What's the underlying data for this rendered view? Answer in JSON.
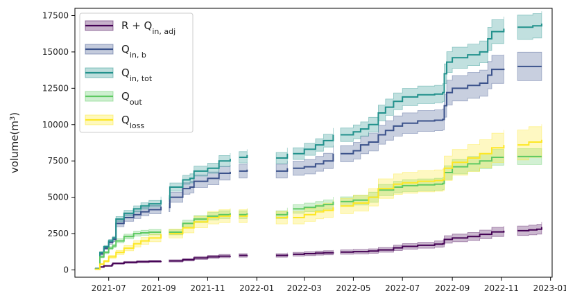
{
  "chart_data": {
    "type": "line",
    "title": "",
    "xlabel": "",
    "ylabel": "volume(m",
    "ylabel_sup": "3",
    "ylabel_close": ")",
    "xlim": [
      "2021-05-20",
      "2023-01-03"
    ],
    "ylim": [
      -500,
      18000
    ],
    "x_ticks": [
      "2021-07-01",
      "2021-09-01",
      "2021-11-01",
      "2022-01-01",
      "2022-03-01",
      "2022-05-01",
      "2022-07-01",
      "2022-09-01",
      "2022-11-01",
      "2023-01-01"
    ],
    "x_tick_labels": [
      "2021-07",
      "2021-09",
      "2021-11",
      "2022-01",
      "2022-03",
      "2022-05",
      "2022-07",
      "2022-09",
      "2022-11",
      "2023-01"
    ],
    "y_ticks": [
      0,
      2500,
      5000,
      7500,
      10000,
      12500,
      15000,
      17500
    ],
    "y_tick_labels": [
      "0",
      "2500",
      "5000",
      "7500",
      "10000",
      "12500",
      "15000",
      "17500"
    ],
    "grid": false,
    "legend_position": "top-left",
    "series": [
      {
        "name": "R + Q",
        "sub": "in, adj",
        "color": "#440154",
        "band": 0.12,
        "segments": [
          [
            [
              "2021-06-14",
              50
            ],
            [
              "2021-06-20",
              200
            ],
            [
              "2021-06-25",
              280
            ],
            [
              "2021-07-05",
              350
            ],
            [
              "2021-07-06",
              450
            ],
            [
              "2021-07-20",
              520
            ],
            [
              "2021-08-05",
              570
            ],
            [
              "2021-08-20",
              590
            ],
            [
              "2021-09-04",
              600
            ]
          ],
          [
            [
              "2021-09-14",
              620
            ],
            [
              "2021-10-01",
              700
            ],
            [
              "2021-10-15",
              820
            ],
            [
              "2021-11-01",
              900
            ],
            [
              "2021-11-15",
              950
            ],
            [
              "2021-11-29",
              970
            ]
          ],
          [
            [
              "2021-12-10",
              1000
            ],
            [
              "2021-12-20",
              1010
            ]
          ],
          [
            [
              "2022-01-25",
              1000
            ],
            [
              "2022-02-08",
              1060
            ]
          ],
          [
            [
              "2022-02-15",
              1080
            ],
            [
              "2022-03-01",
              1120
            ],
            [
              "2022-03-15",
              1160
            ],
            [
              "2022-03-25",
              1180
            ],
            [
              "2022-04-06",
              1220
            ]
          ],
          [
            [
              "2022-04-15",
              1230
            ],
            [
              "2022-05-01",
              1260
            ],
            [
              "2022-05-20",
              1300
            ],
            [
              "2022-06-01",
              1380
            ],
            [
              "2022-06-20",
              1520
            ],
            [
              "2022-07-01",
              1620
            ],
            [
              "2022-07-20",
              1700
            ],
            [
              "2022-08-10",
              1780
            ],
            [
              "2022-08-20",
              1800
            ],
            [
              "2022-08-22",
              2100
            ],
            [
              "2022-09-01",
              2200
            ],
            [
              "2022-09-20",
              2300
            ],
            [
              "2022-10-05",
              2450
            ],
            [
              "2022-10-20",
              2620
            ],
            [
              "2022-11-04",
              2700
            ]
          ],
          [
            [
              "2022-11-21",
              2700
            ],
            [
              "2022-12-05",
              2750
            ],
            [
              "2022-12-15",
              2800
            ],
            [
              "2022-12-21",
              2950
            ]
          ]
        ]
      },
      {
        "name": "Q",
        "sub": "in, b",
        "color": "#3b528b",
        "band": 0.07,
        "segments": [
          [
            [
              "2021-06-14",
              100
            ],
            [
              "2021-06-20",
              1100
            ],
            [
              "2021-06-25",
              1500
            ],
            [
              "2021-07-01",
              1900
            ],
            [
              "2021-07-06",
              2100
            ],
            [
              "2021-07-10",
              3200
            ],
            [
              "2021-07-20",
              3600
            ],
            [
              "2021-08-01",
              3800
            ],
            [
              "2021-08-10",
              4000
            ],
            [
              "2021-08-20",
              4150
            ],
            [
              "2021-09-04",
              4350
            ]
          ],
          [
            [
              "2021-09-14",
              4300
            ],
            [
              "2021-09-15",
              5000
            ],
            [
              "2021-10-01",
              5600
            ],
            [
              "2021-10-10",
              5700
            ],
            [
              "2021-10-15",
              6100
            ],
            [
              "2021-11-01",
              6300
            ],
            [
              "2021-11-15",
              6650
            ],
            [
              "2021-11-29",
              6750
            ]
          ],
          [
            [
              "2021-12-10",
              6800
            ],
            [
              "2021-12-20",
              6900
            ]
          ],
          [
            [
              "2022-01-25",
              6800
            ],
            [
              "2022-02-08",
              7000
            ]
          ],
          [
            [
              "2022-02-15",
              7000
            ],
            [
              "2022-03-01",
              7100
            ],
            [
              "2022-03-15",
              7300
            ],
            [
              "2022-03-25",
              7500
            ],
            [
              "2022-04-06",
              8000
            ]
          ],
          [
            [
              "2022-04-15",
              8000
            ],
            [
              "2022-05-01",
              8200
            ],
            [
              "2022-05-10",
              8600
            ],
            [
              "2022-05-20",
              8800
            ],
            [
              "2022-06-01",
              9300
            ],
            [
              "2022-06-10",
              9600
            ],
            [
              "2022-06-20",
              9900
            ],
            [
              "2022-07-01",
              10100
            ],
            [
              "2022-07-20",
              10250
            ],
            [
              "2022-08-10",
              10300
            ],
            [
              "2022-08-20",
              10350
            ],
            [
              "2022-08-22",
              11300
            ],
            [
              "2022-08-25",
              12200
            ],
            [
              "2022-09-01",
              12500
            ],
            [
              "2022-09-20",
              12700
            ],
            [
              "2022-10-05",
              12850
            ],
            [
              "2022-10-15",
              13400
            ],
            [
              "2022-10-20",
              13800
            ],
            [
              "2022-11-04",
              13850
            ]
          ],
          [
            [
              "2022-11-21",
              14000
            ],
            [
              "2022-12-21",
              14000
            ]
          ]
        ]
      },
      {
        "name": "Q",
        "sub": "in, tot",
        "color": "#21918c",
        "band": 0.05,
        "segments": [
          [
            [
              "2021-06-14",
              100
            ],
            [
              "2021-06-20",
              1200
            ],
            [
              "2021-06-25",
              1600
            ],
            [
              "2021-07-01",
              2000
            ],
            [
              "2021-07-06",
              2200
            ],
            [
              "2021-07-10",
              3500
            ],
            [
              "2021-07-20",
              3900
            ],
            [
              "2021-08-01",
              4200
            ],
            [
              "2021-08-10",
              4400
            ],
            [
              "2021-08-20",
              4550
            ],
            [
              "2021-09-04",
              4800
            ]
          ],
          [
            [
              "2021-09-14",
              4900
            ],
            [
              "2021-09-15",
              5700
            ],
            [
              "2021-10-01",
              6200
            ],
            [
              "2021-10-10",
              6300
            ],
            [
              "2021-10-15",
              6800
            ],
            [
              "2021-11-01",
              7000
            ],
            [
              "2021-11-15",
              7500
            ],
            [
              "2021-11-29",
              7650
            ]
          ],
          [
            [
              "2021-12-10",
              7750
            ],
            [
              "2021-12-20",
              7900
            ]
          ],
          [
            [
              "2022-01-25",
              7700
            ],
            [
              "2022-02-08",
              8000
            ]
          ],
          [
            [
              "2022-02-15",
              8000
            ],
            [
              "2022-03-01",
              8300
            ],
            [
              "2022-03-15",
              8600
            ],
            [
              "2022-03-25",
              8900
            ],
            [
              "2022-04-06",
              9300
            ]
          ],
          [
            [
              "2022-04-15",
              9300
            ],
            [
              "2022-05-01",
              9500
            ],
            [
              "2022-05-10",
              9700
            ],
            [
              "2022-05-20",
              10000
            ],
            [
              "2022-06-01",
              10800
            ],
            [
              "2022-06-10",
              11200
            ],
            [
              "2022-06-20",
              11600
            ],
            [
              "2022-07-01",
              11900
            ],
            [
              "2022-07-20",
              12050
            ],
            [
              "2022-08-10",
              12100
            ],
            [
              "2022-08-20",
              12200
            ],
            [
              "2022-08-22",
              13500
            ],
            [
              "2022-08-25",
              14300
            ],
            [
              "2022-09-01",
              14600
            ],
            [
              "2022-09-20",
              14800
            ],
            [
              "2022-10-05",
              15000
            ],
            [
              "2022-10-15",
              15900
            ],
            [
              "2022-10-20",
              16400
            ],
            [
              "2022-11-04",
              16600
            ]
          ],
          [
            [
              "2022-11-21",
              16700
            ],
            [
              "2022-12-10",
              16800
            ],
            [
              "2022-12-21",
              16950
            ]
          ]
        ]
      },
      {
        "name": "Q",
        "sub": "out",
        "color": "#5ec962",
        "band": 0.07,
        "segments": [
          [
            [
              "2021-06-14",
              50
            ],
            [
              "2021-06-20",
              900
            ],
            [
              "2021-06-25",
              1200
            ],
            [
              "2021-07-01",
              1500
            ],
            [
              "2021-07-06",
              1650
            ],
            [
              "2021-07-10",
              2000
            ],
            [
              "2021-07-20",
              2300
            ],
            [
              "2021-08-01",
              2500
            ],
            [
              "2021-08-10",
              2550
            ],
            [
              "2021-08-20",
              2600
            ],
            [
              "2021-09-04",
              2600
            ]
          ],
          [
            [
              "2021-09-14",
              2600
            ],
            [
              "2021-10-01",
              3200
            ],
            [
              "2021-10-15",
              3500
            ],
            [
              "2021-11-01",
              3700
            ],
            [
              "2021-11-15",
              3800
            ],
            [
              "2021-11-29",
              3900
            ]
          ],
          [
            [
              "2021-12-10",
              3800
            ],
            [
              "2021-12-20",
              3900
            ]
          ],
          [
            [
              "2022-01-25",
              3800
            ],
            [
              "2022-02-08",
              4000
            ]
          ],
          [
            [
              "2022-02-15",
              4200
            ],
            [
              "2022-03-01",
              4300
            ],
            [
              "2022-03-15",
              4400
            ],
            [
              "2022-03-25",
              4500
            ],
            [
              "2022-04-06",
              4700
            ]
          ],
          [
            [
              "2022-04-15",
              4700
            ],
            [
              "2022-05-01",
              4800
            ],
            [
              "2022-05-20",
              5000
            ],
            [
              "2022-06-01",
              5500
            ],
            [
              "2022-06-20",
              5700
            ],
            [
              "2022-07-01",
              5800
            ],
            [
              "2022-07-20",
              5850
            ],
            [
              "2022-08-10",
              5900
            ],
            [
              "2022-08-20",
              5950
            ],
            [
              "2022-08-22",
              6700
            ],
            [
              "2022-09-01",
              7100
            ],
            [
              "2022-09-20",
              7300
            ],
            [
              "2022-10-05",
              7500
            ],
            [
              "2022-10-20",
              7750
            ],
            [
              "2022-11-04",
              7750
            ]
          ],
          [
            [
              "2022-11-21",
              7800
            ],
            [
              "2022-12-21",
              7800
            ]
          ]
        ]
      },
      {
        "name": "Q",
        "sub": "loss",
        "color": "#fde725",
        "band": 0.12,
        "segments": [
          [
            [
              "2021-06-14",
              50
            ],
            [
              "2021-06-20",
              400
            ],
            [
              "2021-06-25",
              600
            ],
            [
              "2021-07-01",
              900
            ],
            [
              "2021-07-10",
              1200
            ],
            [
              "2021-07-20",
              1500
            ],
            [
              "2021-08-01",
              1800
            ],
            [
              "2021-08-10",
              2000
            ],
            [
              "2021-08-20",
              2200
            ],
            [
              "2021-09-04",
              2450
            ]
          ],
          [
            [
              "2021-09-14",
              2500
            ],
            [
              "2021-10-01",
              2900
            ],
            [
              "2021-10-15",
              3300
            ],
            [
              "2021-11-01",
              3600
            ],
            [
              "2021-11-15",
              3700
            ],
            [
              "2021-11-29",
              3800
            ]
          ],
          [
            [
              "2021-12-10",
              3700
            ],
            [
              "2021-12-20",
              3800
            ]
          ],
          [
            [
              "2022-01-25",
              3600
            ],
            [
              "2022-02-08",
              3700
            ]
          ],
          [
            [
              "2022-02-15",
              3600
            ],
            [
              "2022-03-01",
              3800
            ],
            [
              "2022-03-15",
              4000
            ],
            [
              "2022-03-25",
              4100
            ],
            [
              "2022-04-06",
              4300
            ]
          ],
          [
            [
              "2022-04-15",
              4400
            ],
            [
              "2022-05-01",
              4600
            ],
            [
              "2022-05-20",
              5000
            ],
            [
              "2022-06-01",
              5600
            ],
            [
              "2022-06-20",
              5900
            ],
            [
              "2022-07-01",
              6000
            ],
            [
              "2022-07-20",
              6100
            ],
            [
              "2022-08-10",
              6150
            ],
            [
              "2022-08-20",
              6200
            ],
            [
              "2022-08-22",
              7000
            ],
            [
              "2022-09-01",
              7400
            ],
            [
              "2022-09-20",
              7700
            ],
            [
              "2022-10-05",
              8000
            ],
            [
              "2022-10-20",
              8400
            ],
            [
              "2022-11-04",
              8600
            ]
          ],
          [
            [
              "2022-11-21",
              8600
            ],
            [
              "2022-12-05",
              8800
            ],
            [
              "2022-12-21",
              8950
            ]
          ]
        ]
      }
    ]
  }
}
